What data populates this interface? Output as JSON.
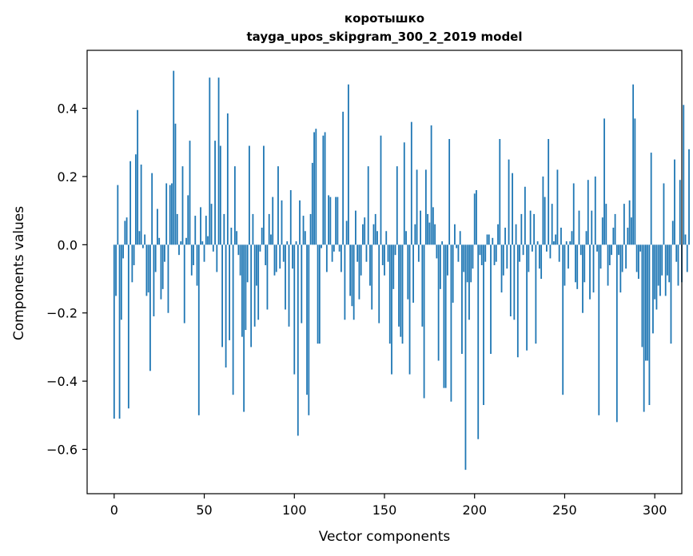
{
  "chart_data": {
    "type": "bar",
    "title_line1": "коротышко",
    "title_line2": "tayga_upos_skipgram_300_2_2019 model",
    "xlabel": "Vector components",
    "ylabel": "Components values",
    "xlim": [
      -15,
      315
    ],
    "ylim": [
      -0.73,
      0.57
    ],
    "xticks": [
      0,
      50,
      100,
      150,
      200,
      250,
      300
    ],
    "yticks": [
      -0.6,
      -0.4,
      -0.2,
      0.0,
      0.2,
      0.4
    ],
    "ytick_labels": [
      "−0.6",
      "−0.4",
      "−0.2",
      "0.0",
      "0.2",
      "0.4"
    ],
    "bar_color": "#1f77b4",
    "grid": false,
    "values": [
      -0.51,
      -0.15,
      0.175,
      -0.51,
      -0.22,
      -0.04,
      0.07,
      0.08,
      -0.48,
      0.245,
      -0.11,
      -0.06,
      0.265,
      0.395,
      0.04,
      0.235,
      -0.01,
      0.03,
      -0.15,
      -0.14,
      -0.37,
      0.21,
      -0.21,
      -0.08,
      0.105,
      0.02,
      -0.16,
      -0.13,
      -0.05,
      0.18,
      -0.2,
      0.175,
      0.18,
      0.51,
      0.355,
      0.09,
      -0.03,
      0.01,
      0.23,
      -0.23,
      0.02,
      0.145,
      0.305,
      -0.09,
      -0.06,
      0.085,
      -0.12,
      -0.5,
      0.11,
      0.01,
      -0.05,
      0.085,
      0.025,
      0.49,
      0.12,
      -0.02,
      0.305,
      -0.08,
      0.49,
      0.29,
      -0.3,
      0.09,
      -0.36,
      0.385,
      -0.28,
      0.05,
      -0.44,
      0.23,
      0.04,
      -0.03,
      -0.09,
      -0.27,
      -0.49,
      -0.25,
      -0.11,
      0.29,
      -0.3,
      0.09,
      -0.24,
      -0.12,
      -0.22,
      -0.02,
      0.05,
      0.29,
      -0.06,
      -0.19,
      0.09,
      0.03,
      0.14,
      -0.09,
      -0.08,
      0.23,
      -0.07,
      0.13,
      -0.05,
      -0.19,
      0.01,
      -0.24,
      0.16,
      -0.07,
      -0.38,
      0.01,
      -0.56,
      0.13,
      -0.23,
      0.085,
      0.04,
      -0.44,
      -0.5,
      0.09,
      0.24,
      0.33,
      0.34,
      -0.29,
      -0.29,
      -0.01,
      0.32,
      0.33,
      -0.08,
      0.145,
      0.14,
      -0.05,
      -0.02,
      0.14,
      0.14,
      -0.02,
      -0.08,
      0.39,
      -0.22,
      0.07,
      0.47,
      -0.15,
      -0.18,
      -0.22,
      0.1,
      -0.05,
      -0.16,
      -0.09,
      0.06,
      0.08,
      -0.05,
      0.23,
      -0.12,
      -0.19,
      0.06,
      0.09,
      0.04,
      -0.23,
      0.32,
      -0.06,
      -0.09,
      0.04,
      -0.05,
      -0.29,
      -0.38,
      -0.13,
      -0.03,
      0.23,
      -0.24,
      -0.27,
      -0.29,
      0.3,
      0.04,
      -0.16,
      -0.38,
      0.36,
      -0.17,
      0.06,
      0.22,
      -0.05,
      0.1,
      -0.24,
      -0.45,
      0.22,
      0.09,
      0.065,
      0.35,
      0.11,
      0.06,
      -0.04,
      -0.34,
      -0.13,
      0.01,
      -0.42,
      -0.42,
      -0.09,
      0.31,
      -0.46,
      -0.17,
      0.06,
      -0.01,
      -0.05,
      0.04,
      -0.32,
      -0.08,
      -0.66,
      -0.11,
      -0.22,
      -0.11,
      -0.07,
      0.15,
      0.16,
      -0.57,
      -0.03,
      -0.06,
      -0.47,
      -0.05,
      0.03,
      0.03,
      -0.32,
      0.02,
      -0.06,
      -0.05,
      0.06,
      0.31,
      -0.14,
      -0.09,
      0.05,
      -0.07,
      0.25,
      -0.21,
      0.21,
      -0.22,
      0.06,
      -0.33,
      -0.05,
      0.09,
      -0.03,
      0.17,
      -0.31,
      -0.08,
      0.1,
      -0.02,
      0.09,
      -0.29,
      0.01,
      -0.07,
      -0.1,
      0.2,
      0.14,
      -0.02,
      0.31,
      -0.04,
      0.12,
      0.01,
      0.03,
      0.22,
      -0.05,
      0.05,
      -0.44,
      -0.12,
      0.01,
      -0.07,
      0.01,
      0.04,
      0.18,
      -0.11,
      -0.13,
      0.1,
      -0.03,
      -0.2,
      -0.11,
      0.04,
      0.19,
      -0.16,
      0.1,
      -0.14,
      0.2,
      -0.02,
      -0.5,
      -0.07,
      0.08,
      0.37,
      0.12,
      -0.12,
      -0.06,
      -0.03,
      0.05,
      0.09,
      -0.52,
      -0.03,
      -0.14,
      -0.08,
      0.12,
      -0.07,
      0.05,
      0.13,
      0.08,
      0.47,
      0.37,
      -0.08,
      -0.1,
      -0.02,
      -0.3,
      -0.49,
      -0.34,
      -0.34,
      -0.47,
      0.27,
      -0.26,
      -0.16,
      -0.19,
      -0.12,
      -0.15,
      -0.09,
      0.18,
      -0.15,
      -0.09,
      -0.11,
      -0.29,
      0.07,
      0.25,
      -0.05,
      -0.12,
      0.19,
      -0.11,
      0.41,
      0.03,
      -0.08,
      0.28
    ]
  }
}
